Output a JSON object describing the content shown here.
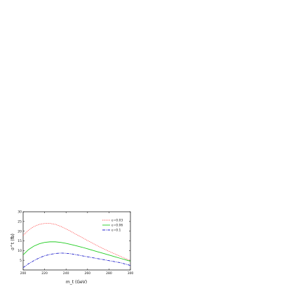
{
  "chart_data": {
    "type": "line",
    "title": "",
    "xlabel": "m_t (GeV)",
    "ylabel": "σ^t (fb)",
    "xlim": [
      200,
      300
    ],
    "ylim": [
      0,
      30
    ],
    "x_ticks": [
      200,
      220,
      240,
      260,
      280,
      300
    ],
    "y_ticks": [
      0,
      5,
      10,
      15,
      20,
      25,
      30
    ],
    "legend_position": "top-right",
    "grid": false,
    "series": [
      {
        "name": "ε=0.03",
        "color": "#ff5555",
        "style": "dotted",
        "x": [
          200,
          205,
          210,
          215,
          220,
          225,
          230,
          235,
          240,
          245,
          250,
          255,
          260,
          265,
          270,
          275,
          280,
          285,
          290,
          295,
          300
        ],
        "y": [
          17.8,
          20.5,
          22.4,
          23.5,
          24.0,
          24.0,
          23.5,
          22.5,
          21.2,
          19.7,
          18.2,
          16.7,
          15.2,
          13.7,
          12.3,
          10.9,
          9.6,
          8.4,
          7.2,
          6.0,
          4.8
        ]
      },
      {
        "name": "ε=0.06",
        "color": "#22cc22",
        "style": "solid",
        "x": [
          200,
          205,
          210,
          215,
          220,
          225,
          230,
          235,
          240,
          245,
          250,
          255,
          260,
          265,
          270,
          275,
          280,
          285,
          290,
          295,
          300
        ],
        "y": [
          7.8,
          10.5,
          12.3,
          13.5,
          14.2,
          14.5,
          14.5,
          14.2,
          13.7,
          13.1,
          12.4,
          11.7,
          10.9,
          10.1,
          9.3,
          8.5,
          7.7,
          6.9,
          6.1,
          5.3,
          4.5
        ]
      },
      {
        "name": "ε=0.1",
        "color": "#2222cc",
        "style": "dashdot",
        "x": [
          200,
          205,
          210,
          215,
          220,
          225,
          230,
          235,
          240,
          245,
          250,
          255,
          260,
          265,
          270,
          275,
          280,
          285,
          290,
          295,
          300
        ],
        "y": [
          1.2,
          3.2,
          4.8,
          6.2,
          7.3,
          8.0,
          8.5,
          8.7,
          8.6,
          8.3,
          7.8,
          7.3,
          6.8,
          6.3,
          5.8,
          5.3,
          4.8,
          4.3,
          3.8,
          3.1,
          2.3
        ]
      }
    ]
  }
}
